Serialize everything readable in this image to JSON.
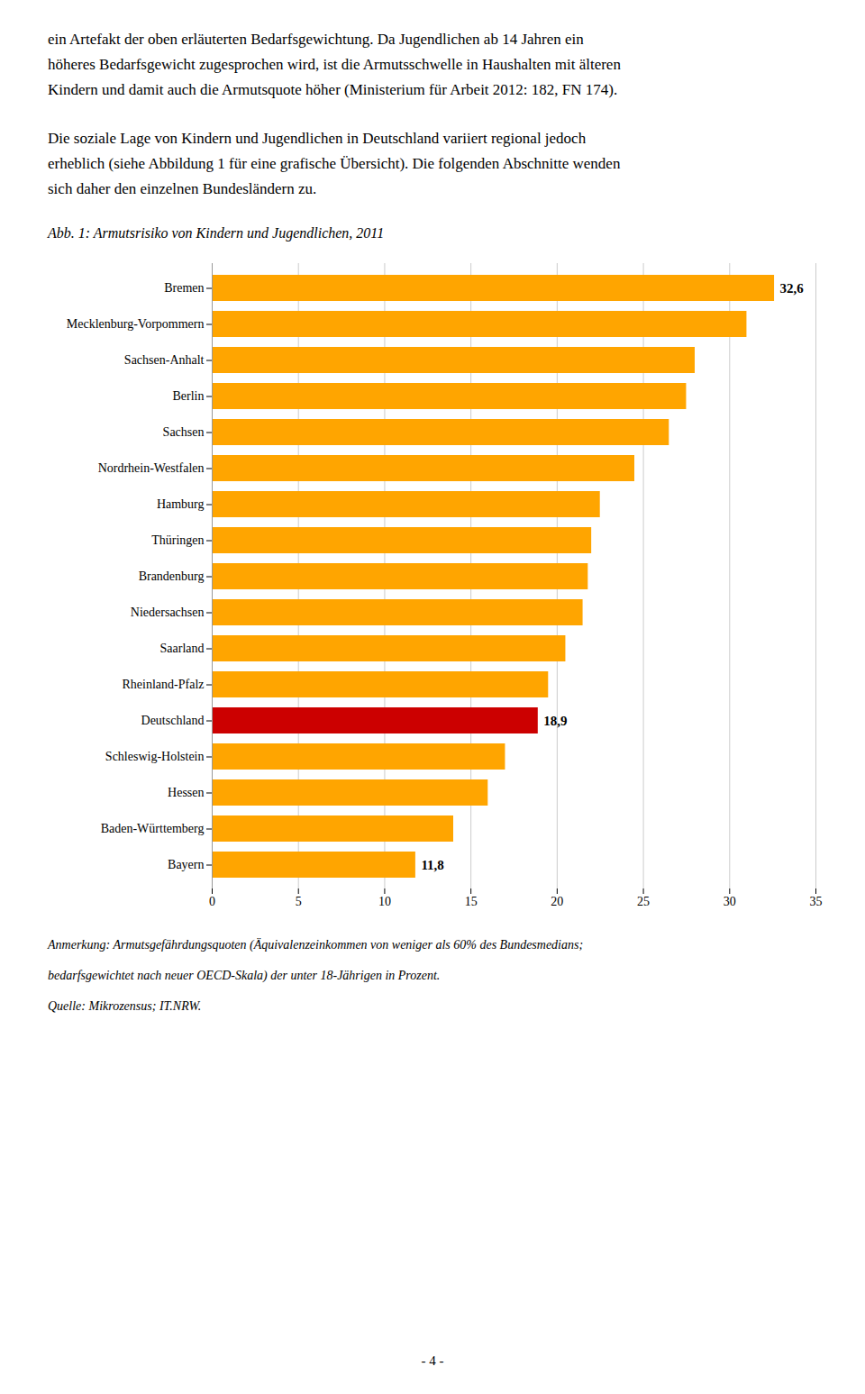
{
  "chart_data": {
    "type": "bar",
    "orientation": "horizontal",
    "title": "Abb. 1: Armutsrisiko von Kindern und Jugendlichen, 2011",
    "body_text": [
      [
        "ein Artefakt der oben erläuterten Bedarfsgewichtung. Da Jugendlichen ab 14 Jahren ein",
        "höheres Bedarfsgewicht zugesprochen wird, ist die Armutsschwelle in Haushalten mit älteren",
        "Kindern und damit auch die Armutsquote höher (Ministerium für Arbeit 2012: 182, FN 174)."
      ],
      [
        "Die soziale Lage von Kindern und Jugendlichen in Deutschland variiert regional jedoch",
        "erheblich (siehe Abbildung 1 für eine grafische Übersicht). Die folgenden Abschnitte wenden",
        "sich daher den einzelnen Bundesländern zu."
      ]
    ],
    "categories": [
      "Bremen",
      "Mecklenburg-Vorpommern",
      "Sachsen-Anhalt",
      "Berlin",
      "Sachsen",
      "Nordrhein-Westfalen",
      "Hamburg",
      "Thüringen",
      "Brandenburg",
      "Niedersachsen",
      "Saarland",
      "Rheinland-Pfalz",
      "Deutschland",
      "Schleswig-Holstein",
      "Hessen",
      "Baden-Württemberg",
      "Bayern"
    ],
    "values": [
      32.6,
      31.0,
      28.0,
      27.5,
      26.5,
      24.5,
      22.5,
      22.0,
      21.8,
      21.5,
      20.5,
      19.5,
      18.9,
      17.0,
      16.0,
      14.0,
      11.8
    ],
    "value_labels": [
      "32,6",
      null,
      null,
      null,
      null,
      null,
      null,
      null,
      null,
      null,
      null,
      null,
      "18,9",
      null,
      null,
      null,
      "11,8"
    ],
    "data_labels": true,
    "colors": [
      "#FFA500",
      "#FFA500",
      "#FFA500",
      "#FFA500",
      "#FFA500",
      "#FFA500",
      "#FFA500",
      "#FFA500",
      "#FFA500",
      "#FFA500",
      "#FFA500",
      "#FFA500",
      "#CC0000",
      "#FFA500",
      "#FFA500",
      "#FFA500",
      "#FFA500"
    ],
    "xlim": [
      0,
      35
    ],
    "xticks": [
      0,
      5,
      10,
      15,
      20,
      25,
      30,
      35
    ],
    "grid": true,
    "notes": [
      "Anmerkung: Armutsgefährdungsquoten (Äquivalenzeinkommen von weniger als 60% des Bundesmedians;",
      "bedarfsgewichtet nach neuer OECD-Skala) der unter 18-Jährigen in Prozent.",
      "Quelle: Mikrozensus; IT.NRW."
    ],
    "page_number": "- 4 -"
  }
}
